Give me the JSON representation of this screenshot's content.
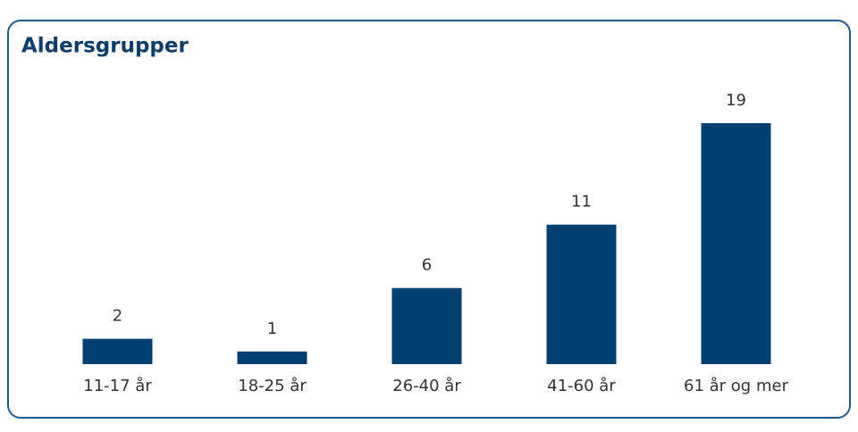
{
  "chart_data": {
    "type": "bar",
    "title": "Aldersgrupper",
    "categories": [
      "11-17 år",
      "18-25 år",
      "26-40 år",
      "41-60 år",
      "61 år og mer"
    ],
    "values": [
      2,
      1,
      6,
      11,
      19
    ],
    "color": "#003f72"
  }
}
